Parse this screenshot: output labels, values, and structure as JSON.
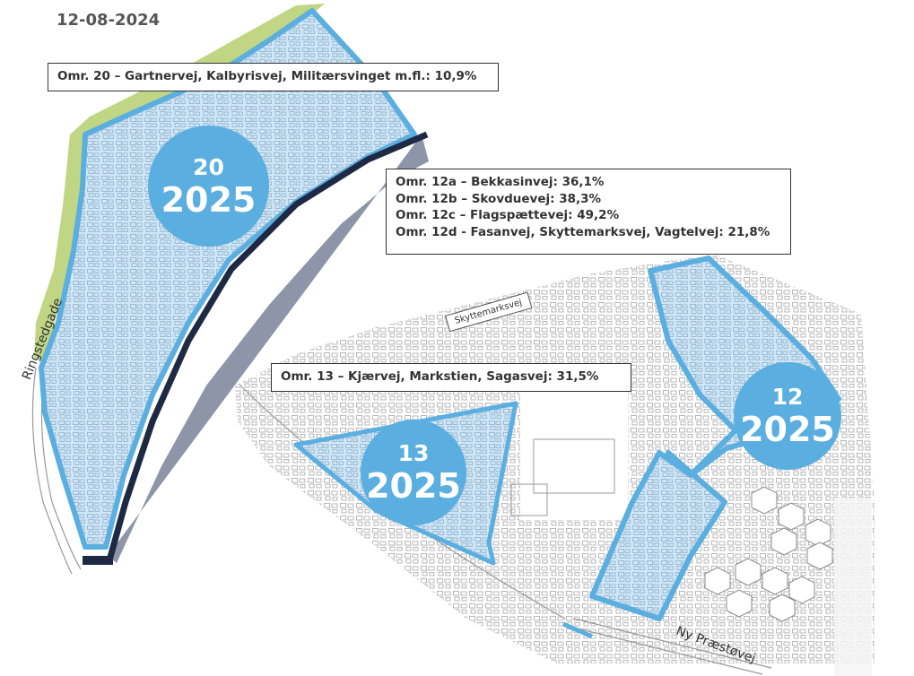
{
  "date": "12-08-2024",
  "info_boxes": {
    "area_20": {
      "lines": [
        "Omr. 20 – Gartnervej, Kalbyrisvej, Militærsvinget m.fl.: 10,9%"
      ]
    },
    "area_12": {
      "lines": [
        "Omr. 12a – Bekkasinvej: 36,1%",
        "Omr. 12b – Skovduevej: 38,3%",
        "Omr. 12c – Flagspættevej: 49,2%",
        "Omr. 12d - Fasanvej, Skyttemarksvej, Vagtelvej: 21,8%"
      ]
    },
    "area_13": {
      "lines": [
        "Omr. 13 – Kjærvej, Markstien, Sagasvej: 31,5%"
      ]
    }
  },
  "badges": {
    "area_20": {
      "number": "20",
      "year": "2025"
    },
    "area_13": {
      "number": "13",
      "year": "2025"
    },
    "area_12": {
      "number": "12",
      "year": "2025"
    }
  },
  "street_labels": {
    "ringstedgade": "Ringstedgade",
    "skyttemarksvej": "Skyttemarksvej",
    "ny_praestoevej": "Ny Præstøvej"
  },
  "colors": {
    "area_fill": "#cfe6f7",
    "area_border": "#5aaee0",
    "badge": "#5aaee0",
    "green_strip": "#b5cf6e",
    "rail": "#1e2a44",
    "embankment": "#8e95a8"
  }
}
